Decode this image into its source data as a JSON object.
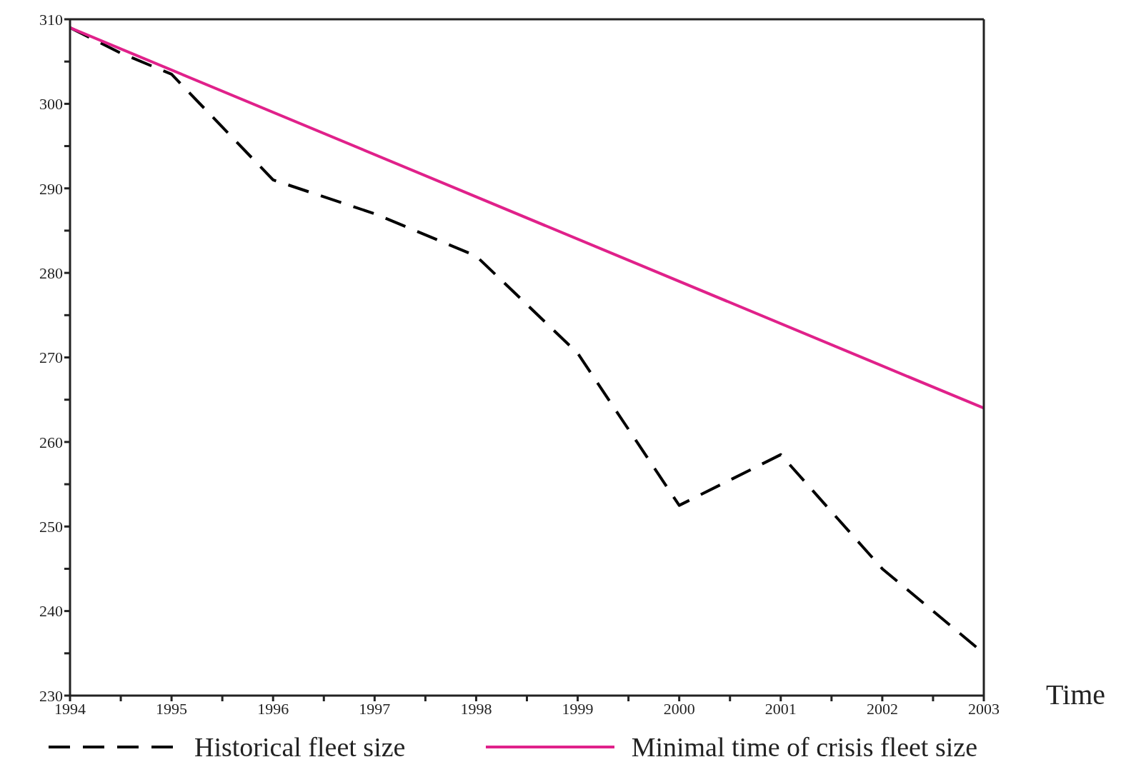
{
  "chart_data": {
    "type": "line",
    "xlabel": "Time",
    "x": [
      1994,
      1994.5,
      1995,
      1996,
      1997,
      1998,
      1999,
      2000,
      2001,
      2002,
      2003
    ],
    "series": [
      {
        "name": "Historical fleet size",
        "color": "#000000",
        "line_style": "dashed",
        "values": [
          309,
          306,
          303.5,
          291,
          287,
          282,
          270.5,
          252.5,
          258.5,
          245,
          235
        ]
      },
      {
        "name": "Minimal time of crisis fleet size",
        "color": "#e0218a",
        "line_style": "solid",
        "x": [
          1994,
          2003
        ],
        "values": [
          309,
          264
        ]
      }
    ],
    "xlim": [
      1994,
      2003
    ],
    "xticks": [
      1994,
      {
        "value": 1994.5,
        "label": null
      },
      1995,
      {
        "value": 1995.5,
        "label": null
      },
      1996,
      {
        "value": 1996.5,
        "label": null
      },
      1997,
      {
        "value": 1997.5,
        "label": null
      },
      1998,
      {
        "value": 1998.5,
        "label": null
      },
      1999,
      {
        "value": 1999.5,
        "label": null
      },
      2000,
      {
        "value": 2000.5,
        "label": null
      },
      2001,
      {
        "value": 2001.5,
        "label": null
      },
      2002,
      {
        "value": 2002.5,
        "label": null
      },
      2003
    ],
    "ylim": [
      230,
      310
    ],
    "yticks": [
      230,
      {
        "value": 235,
        "label": null
      },
      240,
      {
        "value": 245,
        "label": null
      },
      250,
      {
        "value": 255,
        "label": null
      },
      260,
      {
        "value": 265,
        "label": null
      },
      270,
      {
        "value": 275,
        "label": null
      },
      280,
      {
        "value": 285,
        "label": null
      },
      290,
      {
        "value": 295,
        "label": null
      },
      300,
      {
        "value": 305,
        "label": null
      },
      310
    ],
    "grid": false,
    "legend": "bottom",
    "marker": "none"
  }
}
